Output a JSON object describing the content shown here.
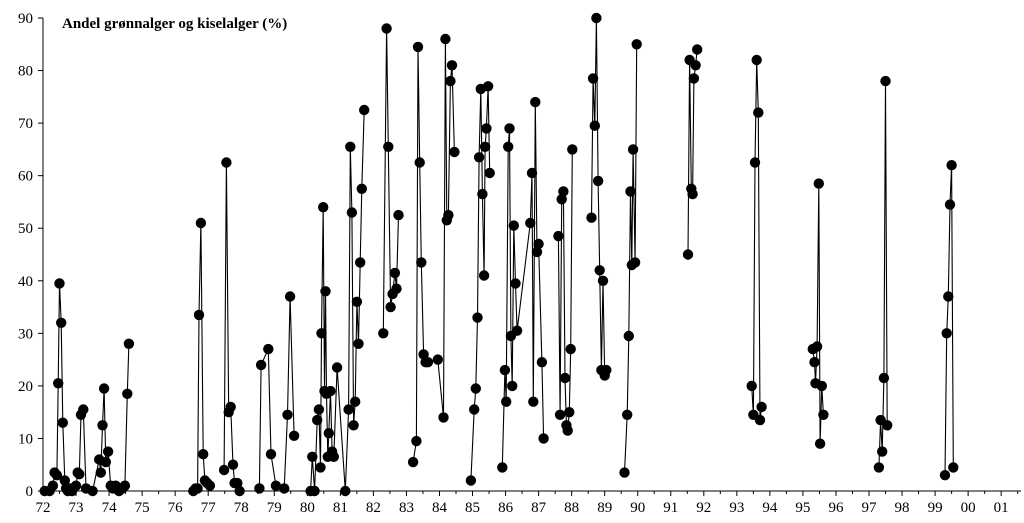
{
  "chart_data": {
    "type": "line",
    "title": "Andel grønnalger og kiselalger (%)",
    "xlabel": "",
    "ylabel": "",
    "x_tick_labels": [
      "72",
      "73",
      "74",
      "75",
      "76",
      "77",
      "78",
      "79",
      "80",
      "81",
      "82",
      "83",
      "84",
      "85",
      "86",
      "87",
      "88",
      "89",
      "90",
      "91",
      "92",
      "93",
      "94",
      "95",
      "96",
      "97",
      "98",
      "99",
      "00",
      "01"
    ],
    "x_tick_years": [
      1972,
      1973,
      1974,
      1975,
      1976,
      1977,
      1978,
      1979,
      1980,
      1981,
      1982,
      1983,
      1984,
      1985,
      1986,
      1987,
      1988,
      1989,
      1990,
      1991,
      1992,
      1993,
      1994,
      1995,
      1996,
      1997,
      1998,
      1999,
      2000,
      2001
    ],
    "xlim": [
      1972,
      2001.6
    ],
    "ylim": [
      0,
      90
    ],
    "y_ticks": [
      0,
      10,
      20,
      30,
      40,
      50,
      60,
      70,
      80,
      90
    ],
    "grid": false,
    "legend": "none",
    "colors": {
      "line": "#000000",
      "marker": "#000000"
    },
    "series": [
      {
        "points": [
          [
            1972.05,
            0
          ],
          [
            1972.2,
            0
          ],
          [
            1972.3,
            1
          ],
          [
            1972.35,
            3.5
          ],
          [
            1972.42,
            3
          ],
          [
            1972.46,
            20.5
          ],
          [
            1972.5,
            39.5
          ],
          [
            1972.55,
            32
          ],
          [
            1972.6,
            13
          ],
          [
            1972.66,
            2
          ],
          [
            1972.7,
            0.5
          ],
          [
            1972.75,
            0
          ],
          [
            1972.82,
            0.5
          ],
          [
            1972.88,
            0
          ],
          [
            1973.0,
            1
          ],
          [
            1973.05,
            3.5
          ],
          [
            1973.1,
            3.2
          ],
          [
            1973.15,
            14.5
          ],
          [
            1973.22,
            15.5
          ],
          [
            1973.3,
            0.5
          ],
          [
            1973.5,
            0
          ],
          [
            1973.7,
            6
          ],
          [
            1973.75,
            3.5
          ],
          [
            1973.8,
            12.5
          ],
          [
            1973.85,
            19.5
          ],
          [
            1973.9,
            5.5
          ],
          [
            1973.97,
            7.5
          ],
          [
            1974.05,
            1
          ],
          [
            1974.12,
            0.5
          ],
          [
            1974.2,
            1
          ],
          [
            1974.3,
            0
          ],
          [
            1974.4,
            0.5
          ],
          [
            1974.48,
            1
          ],
          [
            1974.55,
            18.5
          ],
          [
            1974.6,
            28
          ]
        ]
      },
      {
        "points": [
          [
            1976.55,
            0
          ],
          [
            1976.62,
            0.5
          ],
          [
            1976.68,
            0.5
          ],
          [
            1976.72,
            33.5
          ],
          [
            1976.78,
            51
          ],
          [
            1976.85,
            7
          ],
          [
            1976.9,
            2
          ],
          [
            1976.97,
            1.5
          ],
          [
            1977.05,
            1
          ]
        ]
      },
      {
        "points": [
          [
            1977.48,
            4
          ],
          [
            1977.55,
            62.5
          ],
          [
            1977.62,
            15
          ],
          [
            1977.68,
            16
          ],
          [
            1977.75,
            5
          ],
          [
            1977.8,
            1.5
          ],
          [
            1977.88,
            1.5
          ],
          [
            1977.95,
            0
          ]
        ]
      },
      {
        "points": [
          [
            1978.55,
            0.5
          ],
          [
            1978.6,
            24
          ],
          [
            1978.82,
            27
          ],
          [
            1978.9,
            7
          ],
          [
            1979.05,
            1
          ],
          [
            1979.3,
            0.5
          ],
          [
            1979.4,
            14.5
          ],
          [
            1979.48,
            37
          ],
          [
            1979.6,
            10.5
          ]
        ]
      },
      {
        "points": [
          [
            1980.1,
            0
          ],
          [
            1980.15,
            6.5
          ],
          [
            1980.22,
            0
          ],
          [
            1980.3,
            13.5
          ],
          [
            1980.35,
            15.5
          ],
          [
            1980.4,
            4.5
          ],
          [
            1980.43,
            30
          ],
          [
            1980.48,
            54
          ],
          [
            1980.52,
            19
          ],
          [
            1980.55,
            38
          ],
          [
            1980.58,
            18.5
          ],
          [
            1980.62,
            6.5
          ],
          [
            1980.65,
            11
          ],
          [
            1980.7,
            19
          ],
          [
            1980.75,
            7.5
          ],
          [
            1980.8,
            6.5
          ],
          [
            1980.9,
            23.5
          ],
          [
            1981.15,
            0
          ],
          [
            1981.25,
            15.5
          ],
          [
            1981.3,
            65.5
          ],
          [
            1981.35,
            53
          ],
          [
            1981.4,
            12.5
          ],
          [
            1981.45,
            17
          ],
          [
            1981.5,
            36
          ],
          [
            1981.55,
            28
          ],
          [
            1981.6,
            43.5
          ],
          [
            1981.65,
            57.5
          ],
          [
            1981.72,
            72.5
          ]
        ]
      },
      {
        "points": [
          [
            1982.3,
            30
          ],
          [
            1982.4,
            88
          ],
          [
            1982.45,
            65.5
          ],
          [
            1982.52,
            35
          ],
          [
            1982.58,
            37.5
          ],
          [
            1982.65,
            41.5
          ],
          [
            1982.7,
            38.5
          ],
          [
            1982.76,
            52.5
          ]
        ]
      },
      {
        "points": [
          [
            1983.2,
            5.5
          ],
          [
            1983.3,
            9.5
          ],
          [
            1983.35,
            84.5
          ],
          [
            1983.4,
            62.5
          ],
          [
            1983.45,
            43.5
          ],
          [
            1983.52,
            26
          ],
          [
            1983.58,
            24.5
          ],
          [
            1983.65,
            24.5
          ],
          [
            1983.95,
            25
          ],
          [
            1984.12,
            14
          ],
          [
            1984.18,
            86
          ],
          [
            1984.22,
            51.5
          ],
          [
            1984.27,
            52.5
          ],
          [
            1984.33,
            78
          ],
          [
            1984.38,
            81
          ],
          [
            1984.45,
            64.5
          ]
        ]
      },
      {
        "points": [
          [
            1984.95,
            2
          ],
          [
            1985.05,
            15.5
          ],
          [
            1985.1,
            19.5
          ],
          [
            1985.15,
            33
          ],
          [
            1985.2,
            63.5
          ],
          [
            1985.25,
            76.5
          ],
          [
            1985.3,
            56.5
          ],
          [
            1985.35,
            41
          ],
          [
            1985.38,
            65.5
          ],
          [
            1985.42,
            69
          ],
          [
            1985.47,
            77
          ],
          [
            1985.52,
            60.5
          ]
        ]
      },
      {
        "points": [
          [
            1985.9,
            4.5
          ],
          [
            1985.98,
            23
          ],
          [
            1986.02,
            17
          ],
          [
            1986.08,
            65.5
          ],
          [
            1986.12,
            69
          ],
          [
            1986.16,
            29.5
          ],
          [
            1986.2,
            20
          ],
          [
            1986.25,
            50.5
          ],
          [
            1986.3,
            39.5
          ],
          [
            1986.35,
            30.5
          ],
          [
            1986.75,
            51
          ],
          [
            1986.8,
            60.5
          ],
          [
            1986.84,
            17
          ],
          [
            1986.9,
            74
          ],
          [
            1986.95,
            45.5
          ],
          [
            1987.0,
            47
          ],
          [
            1987.1,
            24.5
          ],
          [
            1987.15,
            10
          ]
        ]
      },
      {
        "points": [
          [
            1987.6,
            48.5
          ],
          [
            1987.65,
            14.5
          ],
          [
            1987.7,
            55.5
          ],
          [
            1987.75,
            57
          ],
          [
            1987.8,
            21.5
          ],
          [
            1987.84,
            12.5
          ],
          [
            1987.88,
            11.5
          ],
          [
            1987.93,
            15
          ],
          [
            1987.97,
            27
          ],
          [
            1988.02,
            65
          ]
        ]
      },
      {
        "points": [
          [
            1988.6,
            52
          ],
          [
            1988.65,
            78.5
          ],
          [
            1988.7,
            69.5
          ],
          [
            1988.75,
            90
          ],
          [
            1988.8,
            59
          ],
          [
            1988.85,
            42
          ],
          [
            1988.9,
            23
          ],
          [
            1988.95,
            40
          ],
          [
            1989.0,
            22
          ],
          [
            1989.05,
            23
          ]
        ]
      },
      {
        "points": [
          [
            1989.6,
            3.5
          ],
          [
            1989.68,
            14.5
          ],
          [
            1989.73,
            29.5
          ],
          [
            1989.78,
            57
          ],
          [
            1989.82,
            43
          ],
          [
            1989.86,
            65
          ],
          [
            1989.92,
            43.5
          ],
          [
            1989.97,
            85
          ]
        ]
      },
      {
        "points": [
          [
            1991.52,
            45
          ],
          [
            1991.57,
            82
          ],
          [
            1991.62,
            57.5
          ],
          [
            1991.66,
            56.5
          ],
          [
            1991.7,
            78.5
          ],
          [
            1991.75,
            81
          ],
          [
            1991.8,
            84
          ]
        ]
      },
      {
        "points": [
          [
            1993.45,
            20
          ],
          [
            1993.5,
            14.5
          ],
          [
            1993.55,
            62.5
          ],
          [
            1993.6,
            82
          ],
          [
            1993.65,
            72
          ],
          [
            1993.7,
            13.5
          ],
          [
            1993.75,
            16
          ]
        ]
      },
      {
        "points": [
          [
            1995.3,
            27
          ],
          [
            1995.35,
            24.5
          ],
          [
            1995.38,
            20.5
          ],
          [
            1995.43,
            27.5
          ],
          [
            1995.48,
            58.5
          ],
          [
            1995.52,
            9
          ],
          [
            1995.57,
            20
          ],
          [
            1995.62,
            14.5
          ]
        ]
      },
      {
        "points": [
          [
            1997.3,
            4.5
          ],
          [
            1997.35,
            13.5
          ],
          [
            1997.4,
            7.5
          ],
          [
            1997.45,
            21.5
          ],
          [
            1997.5,
            78
          ],
          [
            1997.55,
            12.5
          ]
        ]
      },
      {
        "points": [
          [
            1999.3,
            3
          ],
          [
            1999.35,
            30
          ],
          [
            1999.4,
            37
          ],
          [
            1999.45,
            54.5
          ],
          [
            1999.5,
            62
          ],
          [
            1999.55,
            4.5
          ]
        ]
      }
    ]
  }
}
